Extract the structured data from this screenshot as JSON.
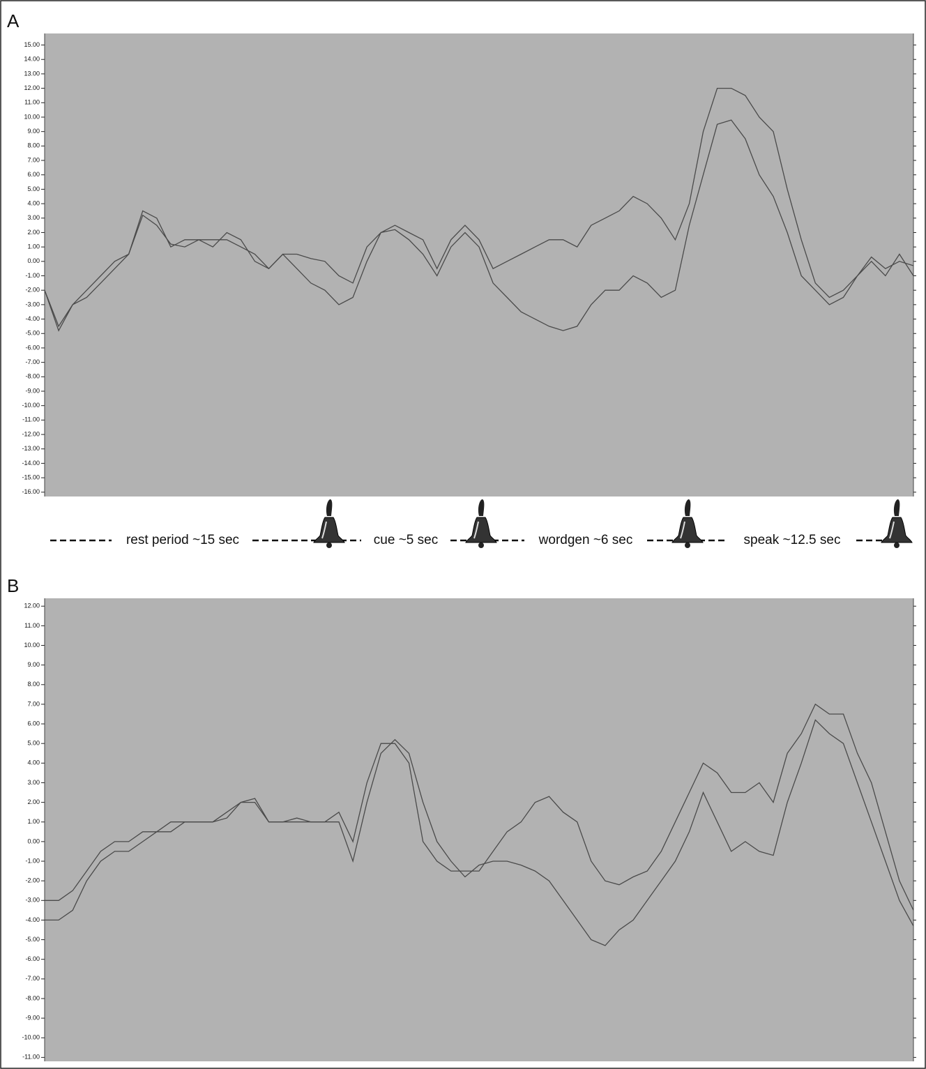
{
  "chart_data": [
    {
      "type": "line",
      "label": "A",
      "background": "#b2b2b2",
      "annotations": [
        "rest period ~15 sec",
        "cue ~5 sec",
        "wordgen ~6 sec",
        "speak ~12.5 sec"
      ],
      "ylim": [
        -16.3,
        15.8
      ],
      "yticks": [
        {
          "value": 15,
          "label": "15.00"
        },
        {
          "value": 14,
          "label": "14.00"
        },
        {
          "value": 13,
          "label": "13.00"
        },
        {
          "value": 12,
          "label": "12.00"
        },
        {
          "value": 11,
          "label": "11.00"
        },
        {
          "value": 10,
          "label": "10.00"
        },
        {
          "value": 9,
          "label": "9.00"
        },
        {
          "value": 8,
          "label": "8.00"
        },
        {
          "value": 7,
          "label": "7.00"
        },
        {
          "value": 6,
          "label": "6.00"
        },
        {
          "value": 5,
          "label": "5.00"
        },
        {
          "value": 4,
          "label": "4.00"
        },
        {
          "value": 3,
          "label": "3.00"
        },
        {
          "value": 2,
          "label": "2.00"
        },
        {
          "value": 1,
          "label": "1.00"
        },
        {
          "value": 0,
          "label": "0.00"
        },
        {
          "value": -1,
          "label": "-1.00"
        },
        {
          "value": -2,
          "label": "-2.00"
        },
        {
          "value": -3,
          "label": "-3.00"
        },
        {
          "value": -4,
          "label": "-4.00"
        },
        {
          "value": -5,
          "label": "-5.00"
        },
        {
          "value": -6,
          "label": "-6.00"
        },
        {
          "value": -7,
          "label": "-7.00"
        },
        {
          "value": -8,
          "label": "-8.00"
        },
        {
          "value": -9,
          "label": "-9.00"
        },
        {
          "value": -10,
          "label": "-10.00"
        },
        {
          "value": -11,
          "label": "-11.00"
        },
        {
          "value": -12,
          "label": "-12.00"
        },
        {
          "value": -13,
          "label": "-13.00"
        },
        {
          "value": -14,
          "label": "-14.00"
        },
        {
          "value": -15,
          "label": "-15.00"
        },
        {
          "value": -16,
          "label": "-16.00"
        }
      ],
      "series": [
        {
          "color": "#4a4a4a",
          "values": [
            -2,
            -4.5,
            -3,
            -2,
            -1,
            0,
            0.5,
            3.5,
            3,
            1,
            1.5,
            1.5,
            1.5,
            1.5,
            1,
            0.5,
            -0.5,
            0.5,
            0.5,
            0.2,
            0,
            -1,
            -1.5,
            1,
            2,
            2.5,
            2,
            1.5,
            -0.5,
            1.5,
            2.5,
            1.5,
            -0.5,
            0,
            0.5,
            1,
            1.5,
            1.5,
            1,
            2.5,
            3,
            3.5,
            4.5,
            4,
            3,
            1.5,
            4,
            9,
            12,
            12,
            11.5,
            10,
            9,
            5,
            1.5,
            -1.5,
            -2.5,
            -2,
            -1,
            0.3,
            -0.5,
            0,
            -0.3
          ]
        },
        {
          "color": "#4a4a4a",
          "values": [
            -2,
            -4.8,
            -3,
            -2.5,
            -1.5,
            -0.5,
            0.5,
            3.2,
            2.5,
            1.2,
            1,
            1.5,
            1,
            2,
            1.5,
            0,
            -0.5,
            0.5,
            -0.5,
            -1.5,
            -2,
            -3,
            -2.5,
            0,
            2,
            2.2,
            1.5,
            0.5,
            -1,
            1,
            2,
            1,
            -1.5,
            -2.5,
            -3.5,
            -4,
            -4.5,
            -4.8,
            -4.5,
            -3,
            -2,
            -2,
            -1,
            -1.5,
            -2.5,
            -2,
            2.5,
            6,
            9.5,
            9.8,
            8.5,
            6,
            4.5,
            2,
            -1,
            -2,
            -3,
            -2.5,
            -1,
            0,
            -1,
            0.5,
            -1
          ]
        }
      ]
    },
    {
      "type": "line",
      "label": "B",
      "background": "#b2b2b2",
      "ylim": [
        -11.2,
        12.4
      ],
      "yticks": [
        {
          "value": 12,
          "label": "12.00"
        },
        {
          "value": 11,
          "label": "11.00"
        },
        {
          "value": 10,
          "label": "10.00"
        },
        {
          "value": 9,
          "label": "9.00"
        },
        {
          "value": 8,
          "label": "8.00"
        },
        {
          "value": 7,
          "label": "7.00"
        },
        {
          "value": 6,
          "label": "6.00"
        },
        {
          "value": 5,
          "label": "5.00"
        },
        {
          "value": 4,
          "label": "4.00"
        },
        {
          "value": 3,
          "label": "3.00"
        },
        {
          "value": 2,
          "label": "2.00"
        },
        {
          "value": 1,
          "label": "1.00"
        },
        {
          "value": 0,
          "label": "0.00"
        },
        {
          "value": -1,
          "label": "-1.00"
        },
        {
          "value": -2,
          "label": "-2.00"
        },
        {
          "value": -3,
          "label": "-3.00"
        },
        {
          "value": -4,
          "label": "-4.00"
        },
        {
          "value": -5,
          "label": "-5.00"
        },
        {
          "value": -6,
          "label": "-6.00"
        },
        {
          "value": -7,
          "label": "-7.00"
        },
        {
          "value": -8,
          "label": "-8.00"
        },
        {
          "value": -9,
          "label": "-9.00"
        },
        {
          "value": -10,
          "label": "-10.00"
        },
        {
          "value": -11,
          "label": "-11.00"
        }
      ],
      "series": [
        {
          "color": "#4a4a4a",
          "values": [
            -3,
            -3,
            -2.5,
            -1.5,
            -0.5,
            0,
            0,
            0.5,
            0.5,
            1,
            1,
            1,
            1,
            1.5,
            2,
            2,
            1,
            1,
            1,
            1,
            1,
            1.5,
            0,
            3,
            5,
            5,
            4,
            0,
            -1,
            -1.5,
            -1.5,
            -1.5,
            -0.5,
            0.5,
            1,
            2,
            2.3,
            1.5,
            1,
            -1,
            -2,
            -2.2,
            -1.8,
            -1.5,
            -0.5,
            1,
            2.5,
            4,
            3.5,
            2.5,
            2.5,
            3,
            2,
            4.5,
            5.5,
            7,
            6.5,
            6.5,
            4.5,
            3,
            0.5,
            -2,
            -3.5
          ]
        },
        {
          "color": "#4a4a4a",
          "values": [
            -4,
            -4,
            -3.5,
            -2,
            -1,
            -0.5,
            -0.5,
            0,
            0.5,
            0.5,
            1,
            1,
            1,
            1.2,
            2,
            2.2,
            1,
            1,
            1.2,
            1,
            1,
            1,
            -1,
            2,
            4.5,
            5.2,
            4.5,
            2,
            0,
            -1,
            -1.8,
            -1.2,
            -1,
            -1,
            -1.2,
            -1.5,
            -2,
            -3,
            -4,
            -5,
            -5.3,
            -4.5,
            -4,
            -3,
            -2,
            -1,
            0.5,
            2.5,
            1,
            -0.5,
            0,
            -0.5,
            -0.7,
            2,
            4,
            6.2,
            5.5,
            5,
            3,
            1,
            -1,
            -3,
            -4.3
          ]
        }
      ]
    }
  ]
}
